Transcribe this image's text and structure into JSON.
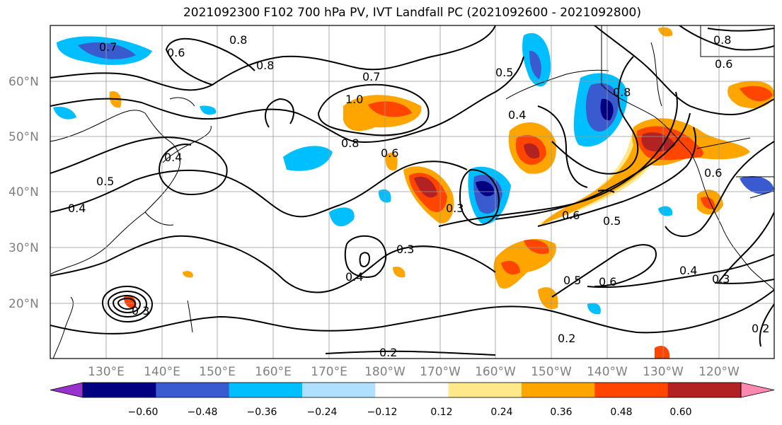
{
  "title": "2021092300 F102 700 hPa PV, IVT Landfall PC (2021092600 - 2021092800)",
  "lat_labels": [
    "60°N",
    "50°N",
    "40°N",
    "30°N",
    "20°N"
  ],
  "lon_labels": [
    "130°E",
    "140°E",
    "150°E",
    "160°E",
    "170°E",
    "180°W",
    "170°W",
    "160°W",
    "150°W",
    "140°W",
    "130°W",
    "120°W"
  ],
  "colorbar": {
    "ticks": [
      "−0.60",
      "−0.48",
      "−0.36",
      "−0.24",
      "−0.12",
      "0.12",
      "0.24",
      "0.36",
      "0.48",
      "0.60"
    ],
    "colors": [
      "#9932CC",
      "#000080",
      "#3A5BCF",
      "#00BFFF",
      "#B0E0FF",
      "#FFFFFF",
      "#FFE88A",
      "#FFA500",
      "#FF4500",
      "#B22222",
      "#FF88B0"
    ]
  },
  "contour_labels": [
    "0.7",
    "0.8",
    "0.6",
    "0.8",
    "0.7",
    "1.0",
    "0.8",
    "0.6",
    "0.5",
    "0.4",
    "0.8",
    "0.6",
    "0.4",
    "0.5",
    "0.3",
    "0.6",
    "0.5",
    "0.3",
    "0.3",
    "0.4",
    "0.5",
    "0.6",
    "0.4",
    "0.3",
    "0.2",
    "0.2",
    "0.2",
    "0.4",
    "0.8",
    "0.6"
  ]
}
